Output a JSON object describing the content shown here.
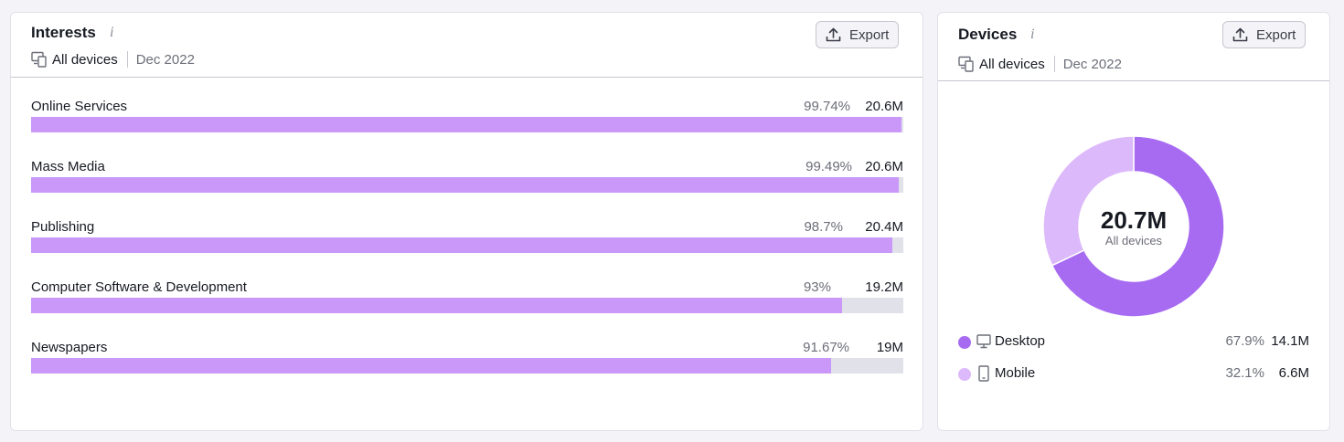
{
  "colors": {
    "bar_fill": "#c998f8",
    "bar_track": "#e0e1e9",
    "desktop": "#a76bf2",
    "mobile": "#dcb9fa"
  },
  "interests": {
    "title": "Interests",
    "info_icon": "info-icon",
    "export_label": "Export",
    "device_filter": "All devices",
    "date": "Dec 2022",
    "rows": [
      {
        "label": "Online Services",
        "percent": "99.74%",
        "value": "20.6M",
        "share": 0.9974
      },
      {
        "label": "Mass Media",
        "percent": "99.49%",
        "value": "20.6M",
        "share": 0.9949
      },
      {
        "label": "Publishing",
        "percent": "98.7%",
        "value": "20.4M",
        "share": 0.987
      },
      {
        "label": "Computer Software & Development",
        "percent": "93%",
        "value": "19.2M",
        "share": 0.93
      },
      {
        "label": "Newspapers",
        "percent": "91.67%",
        "value": "19M",
        "share": 0.9167
      }
    ]
  },
  "devices": {
    "title": "Devices",
    "info_icon": "info-icon",
    "export_label": "Export",
    "device_filter": "All devices",
    "date": "Dec 2022",
    "total": "20.7M",
    "total_label": "All devices",
    "legend": [
      {
        "label": "Desktop",
        "icon": "desktop-icon",
        "percent": "67.9%",
        "value": "14.1M",
        "share": 0.679
      },
      {
        "label": "Mobile",
        "icon": "mobile-icon",
        "percent": "32.1%",
        "value": "6.6M",
        "share": 0.321
      }
    ]
  }
}
